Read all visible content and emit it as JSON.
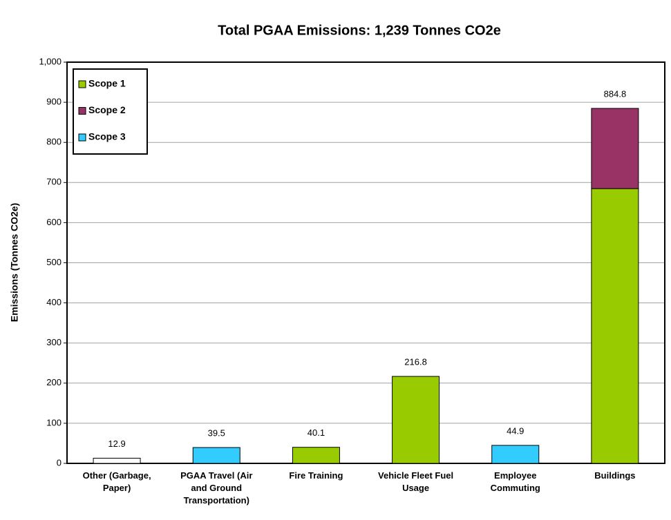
{
  "chart_data": {
    "type": "stacked_bar",
    "title": "Total PGAA Emissions: 1,239 Tonnes CO2e",
    "y_label": "Emissions (Tonnes CO2e)",
    "categories": [
      "Other (Garbage, Paper)",
      "PGAA Travel (Air and Ground Transportation)",
      "Fire Training",
      "Vehicle Fleet Fuel Usage",
      "Employee Commuting",
      "Buildings"
    ],
    "series": [
      {
        "name": "Scope 1",
        "color": "#99cc00",
        "values": [
          null,
          null,
          40.1,
          216.8,
          null,
          684.8
        ]
      },
      {
        "name": "Scope 2",
        "color": "#993366",
        "values": [
          null,
          null,
          null,
          null,
          null,
          200
        ]
      },
      {
        "name": "Scope 3",
        "color": "#33ccff",
        "values": [
          null,
          39.5,
          null,
          null,
          44.9,
          null
        ]
      },
      {
        "color": "#ffffff",
        "values": [
          12.9,
          null,
          null,
          null,
          null,
          null
        ]
      }
    ],
    "totals": [
      12.9,
      39.5,
      40.1,
      216.8,
      44.9,
      884.8
    ],
    "ylim": [
      0,
      1000
    ],
    "yticks": [
      0,
      100,
      200,
      300,
      400,
      500,
      600,
      700,
      800,
      900,
      {
        "value": 1000,
        "label": "1,000"
      }
    ],
    "grid": true,
    "legend": "top-left"
  }
}
